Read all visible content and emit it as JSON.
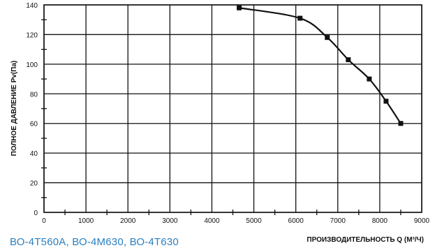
{
  "chart_data": {
    "type": "line",
    "title": "",
    "xlabel": "ПРОИЗВОДИТЕЛЬНОСТЬ  Q (М³/Ч)",
    "ylabel": "ПОЛНОЕ ДАВЛЕНИЕ  Pv(Па)",
    "xlim": [
      0,
      9000
    ],
    "ylim": [
      0,
      140
    ],
    "x_ticks": [
      "0",
      "1000",
      "2000",
      "3000",
      "4000",
      "5000",
      "6000",
      "7000",
      "8000",
      "9000"
    ],
    "y_ticks": [
      "0",
      "20",
      "40",
      "60",
      "80",
      "100",
      "120",
      "140"
    ],
    "grid": true,
    "marker": "square",
    "series": [
      {
        "x": [
          4650,
          6100,
          6750,
          7250,
          7750,
          8150,
          8500
        ],
        "y": [
          138,
          131,
          118,
          103,
          90,
          75,
          60
        ]
      }
    ]
  },
  "caption": "ВО-4Т560А, ВО-4М630, ВО-4Т630",
  "colors": {
    "line": "#111111",
    "grid": "#111111",
    "caption": "#2a7fc0"
  }
}
